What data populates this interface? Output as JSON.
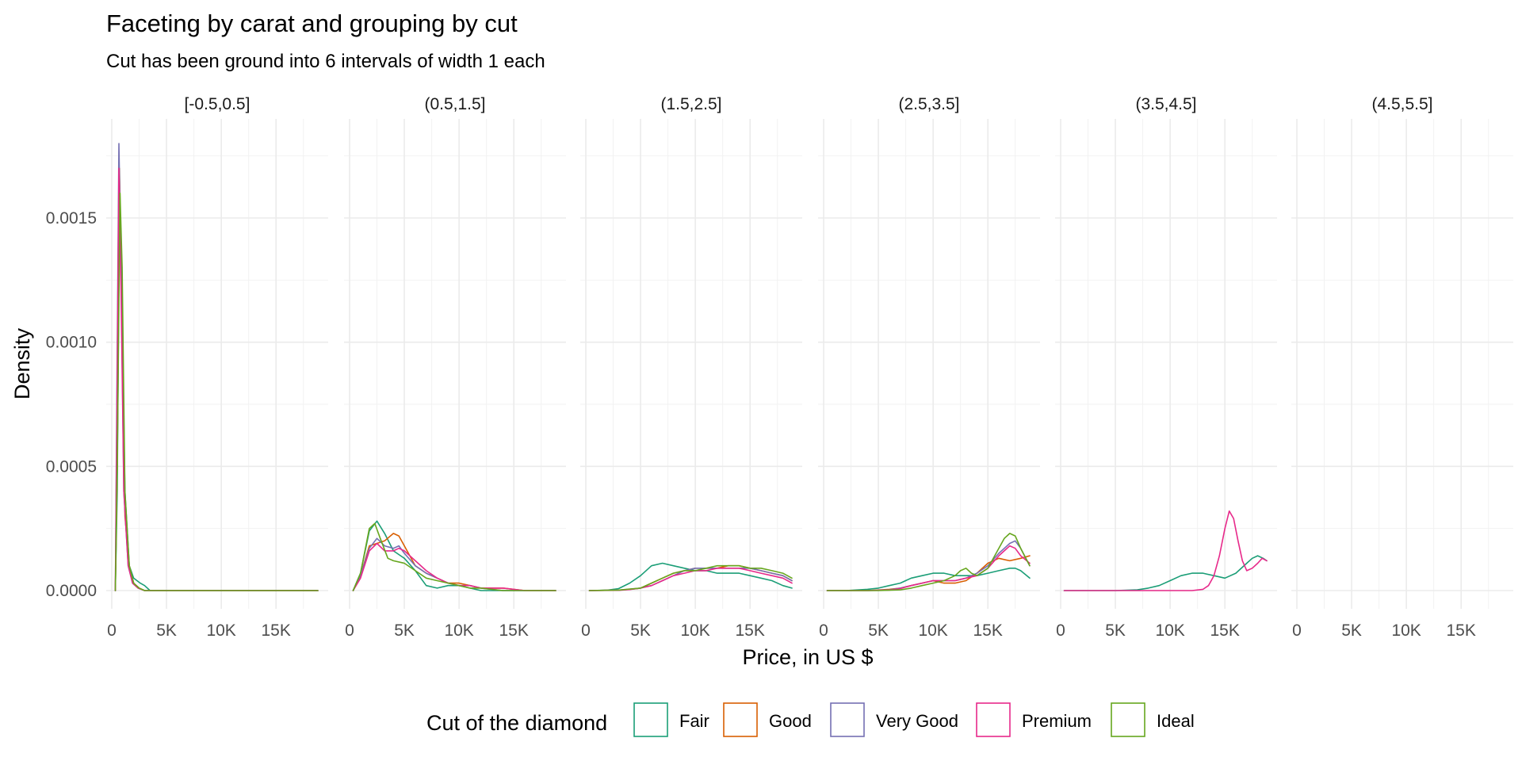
{
  "chart_data": {
    "type": "line",
    "title": "Faceting by carat and grouping by cut",
    "subtitle": "Cut has been ground into 6 intervals of width 1 each",
    "xlabel": "Price, in US $",
    "ylabel": "Density",
    "xlim": [
      0,
      18823
    ],
    "ylim": [
      0,
      0.0018
    ],
    "x_ticks": [
      0,
      5000,
      10000,
      15000
    ],
    "x_tick_labels": [
      "0",
      "5K",
      "10K",
      "15K"
    ],
    "y_ticks": [
      0.0,
      0.0005,
      0.001,
      0.0015
    ],
    "y_tick_labels": [
      "0.0000",
      "0.0005",
      "0.0010",
      "0.0015"
    ],
    "grid": true,
    "legend": {
      "title": "Cut of the diamond",
      "position": "bottom",
      "entries": [
        "Fair",
        "Good",
        "Very Good",
        "Premium",
        "Ideal"
      ]
    },
    "colors": {
      "Fair": "#1b9e77",
      "Good": "#d95f02",
      "Very Good": "#7570b3",
      "Premium": "#e7298a",
      "Ideal": "#66a61e"
    },
    "facets": [
      {
        "label": "[-0.5,0.5]",
        "series": [
          {
            "name": "Fair",
            "x": [
              326,
              500,
              700,
              900,
              1200,
              1600,
              2000,
              2600,
              3000,
              3500,
              18823
            ],
            "y": [
              0.0,
              0.0004,
              0.0016,
              0.0012,
              0.0004,
              0.0001,
              5e-05,
              3e-05,
              2e-05,
              0.0,
              0.0
            ]
          },
          {
            "name": "Good",
            "x": [
              326,
              500,
              700,
              900,
              1200,
              1600,
              2000,
              2500,
              3000,
              18823
            ],
            "y": [
              0.0,
              0.0005,
              0.0017,
              0.0012,
              0.0003,
              0.0001,
              3e-05,
              1e-05,
              0.0,
              0.0
            ]
          },
          {
            "name": "Very Good",
            "x": [
              326,
              450,
              650,
              850,
              1100,
              1500,
              1900,
              2400,
              3000,
              18823
            ],
            "y": [
              0.0,
              0.0007,
              0.0018,
              0.0013,
              0.0004,
              0.0001,
              3e-05,
              1e-05,
              0.0,
              0.0
            ]
          },
          {
            "name": "Premium",
            "x": [
              326,
              450,
              650,
              850,
              1100,
              1500,
              1900,
              2400,
              3000,
              18823
            ],
            "y": [
              0.0,
              0.0006,
              0.0017,
              0.0012,
              0.0004,
              0.0001,
              3e-05,
              1e-05,
              0.0,
              0.0
            ]
          },
          {
            "name": "Ideal",
            "x": [
              326,
              500,
              750,
              950,
              1200,
              1600,
              2000,
              2500,
              3000,
              18823
            ],
            "y": [
              0.0,
              0.0005,
              0.0016,
              0.0013,
              0.0004,
              0.0001,
              3e-05,
              1e-05,
              0.0,
              0.0
            ]
          }
        ]
      },
      {
        "label": "(0.5,1.5]",
        "series": [
          {
            "name": "Fair",
            "x": [
              326,
              1000,
              1800,
              2500,
              3200,
              4000,
              5000,
              6000,
              7000,
              8000,
              9000,
              10000,
              11000,
              12000,
              13000,
              15000,
              17000,
              18823
            ],
            "y": [
              0.0,
              7e-05,
              0.00024,
              0.00028,
              0.00023,
              0.00016,
              0.00013,
              8e-05,
              2e-05,
              1e-05,
              2e-05,
              2e-05,
              1e-05,
              0.0,
              0.0,
              0.0,
              0.0,
              0.0
            ]
          },
          {
            "name": "Good",
            "x": [
              326,
              1000,
              1800,
              2500,
              3200,
              4000,
              4500,
              5000,
              6000,
              7000,
              8000,
              9000,
              10000,
              11000,
              12000,
              14000,
              16000,
              18823
            ],
            "y": [
              0.0,
              6e-05,
              0.00018,
              0.00019,
              0.0002,
              0.00023,
              0.00022,
              0.00018,
              0.0001,
              7e-05,
              5e-05,
              3e-05,
              3e-05,
              2e-05,
              1e-05,
              1e-05,
              0.0,
              0.0
            ]
          },
          {
            "name": "Very Good",
            "x": [
              326,
              1000,
              1800,
              2500,
              3200,
              4000,
              4500,
              5000,
              6000,
              7000,
              8000,
              9000,
              10000,
              11000,
              12000,
              14000,
              16000,
              18823
            ],
            "y": [
              0.0,
              6e-05,
              0.00017,
              0.00021,
              0.00018,
              0.00017,
              0.00018,
              0.00015,
              0.0001,
              7e-05,
              5e-05,
              3e-05,
              2e-05,
              2e-05,
              1e-05,
              0.0,
              0.0,
              0.0
            ]
          },
          {
            "name": "Premium",
            "x": [
              326,
              1000,
              1800,
              2500,
              3200,
              4000,
              4500,
              5000,
              6000,
              7000,
              8000,
              9000,
              10000,
              11000,
              12000,
              14000,
              16000,
              18823
            ],
            "y": [
              0.0,
              5e-05,
              0.00016,
              0.00019,
              0.00016,
              0.00016,
              0.00017,
              0.00016,
              0.00012,
              8e-05,
              5e-05,
              3e-05,
              2e-05,
              2e-05,
              1e-05,
              1e-05,
              0.0,
              0.0
            ]
          },
          {
            "name": "Ideal",
            "x": [
              326,
              1000,
              1800,
              2300,
              2800,
              3500,
              4000,
              5000,
              6000,
              7000,
              8000,
              9000,
              10000,
              11000,
              12000,
              14000,
              16000,
              18823
            ],
            "y": [
              0.0,
              7e-05,
              0.00025,
              0.00027,
              0.00021,
              0.00013,
              0.00012,
              0.00011,
              8e-05,
              5e-05,
              4e-05,
              3e-05,
              2e-05,
              1e-05,
              1e-05,
              0.0,
              0.0,
              0.0
            ]
          }
        ]
      },
      {
        "label": "(1.5,2.5]",
        "series": [
          {
            "name": "Fair",
            "x": [
              326,
              2000,
              3000,
              4000,
              5000,
              6000,
              7000,
              8000,
              9000,
              10000,
              11000,
              12000,
              13000,
              14000,
              15000,
              16000,
              17000,
              18000,
              18823
            ],
            "y": [
              0.0,
              2e-06,
              8e-06,
              3e-05,
              6e-05,
              0.0001,
              0.00011,
              0.0001,
              9e-05,
              8e-05,
              8e-05,
              7e-05,
              7e-05,
              7e-05,
              6e-05,
              5e-05,
              4e-05,
              2e-05,
              1e-05
            ]
          },
          {
            "name": "Good",
            "x": [
              326,
              3000,
              4000,
              5000,
              6000,
              7000,
              8000,
              9000,
              10000,
              11000,
              12000,
              13000,
              14000,
              15000,
              16000,
              17000,
              18000,
              18823
            ],
            "y": [
              0.0,
              2e-06,
              5e-06,
              1e-05,
              3e-05,
              5e-05,
              7e-05,
              8e-05,
              9e-05,
              9e-05,
              9e-05,
              0.0001,
              0.0001,
              9e-05,
              8e-05,
              7e-05,
              6e-05,
              4e-05
            ]
          },
          {
            "name": "Very Good",
            "x": [
              326,
              3000,
              4000,
              5000,
              6000,
              7000,
              8000,
              9000,
              10000,
              11000,
              12000,
              13000,
              14000,
              15000,
              16000,
              17000,
              18000,
              18823
            ],
            "y": [
              0.0,
              2e-06,
              5e-06,
              1e-05,
              2e-05,
              4e-05,
              6e-05,
              8e-05,
              9e-05,
              9e-05,
              9e-05,
              9e-05,
              9e-05,
              9e-05,
              8e-05,
              7e-05,
              6e-05,
              4e-05
            ]
          },
          {
            "name": "Premium",
            "x": [
              326,
              3000,
              4000,
              5000,
              6000,
              7000,
              8000,
              9000,
              10000,
              11000,
              12000,
              13000,
              14000,
              15000,
              16000,
              17000,
              18000,
              18823
            ],
            "y": [
              0.0,
              1e-06,
              4e-06,
              1e-05,
              2e-05,
              4e-05,
              6e-05,
              7e-05,
              8e-05,
              8e-05,
              9e-05,
              9e-05,
              9e-05,
              8e-05,
              7e-05,
              6e-05,
              5e-05,
              3e-05
            ]
          },
          {
            "name": "Ideal",
            "x": [
              326,
              3000,
              4000,
              5000,
              6000,
              7000,
              8000,
              9000,
              10000,
              11000,
              12000,
              13000,
              14000,
              15000,
              16000,
              17000,
              18000,
              18823
            ],
            "y": [
              0.0,
              2e-06,
              6e-06,
              1e-05,
              3e-05,
              5e-05,
              7e-05,
              8e-05,
              8e-05,
              9e-05,
              0.0001,
              0.0001,
              0.0001,
              9e-05,
              9e-05,
              8e-05,
              7e-05,
              5e-05
            ]
          }
        ]
      },
      {
        "label": "(2.5,3.5]",
        "series": [
          {
            "name": "Fair",
            "x": [
              326,
              2000,
              4000,
              5000,
              6000,
              7000,
              8000,
              9000,
              10000,
              11000,
              12000,
              13000,
              14000,
              15000,
              16000,
              17000,
              17500,
              18000,
              18823
            ],
            "y": [
              0.0,
              0.0,
              5e-06,
              1e-05,
              2e-05,
              3e-05,
              5e-05,
              6e-05,
              7e-05,
              7e-05,
              6e-05,
              6e-05,
              6e-05,
              7e-05,
              8e-05,
              9e-05,
              9e-05,
              8e-05,
              5e-05
            ]
          },
          {
            "name": "Good",
            "x": [
              326,
              4000,
              6000,
              7000,
              8000,
              9000,
              10000,
              11000,
              12000,
              13000,
              14000,
              15000,
              16000,
              17000,
              18000,
              18823
            ],
            "y": [
              0.0,
              0.0,
              5e-06,
              1e-05,
              2e-05,
              3e-05,
              4e-05,
              3e-05,
              3e-05,
              4e-05,
              7e-05,
              0.00011,
              0.00013,
              0.00012,
              0.00013,
              0.00014
            ]
          },
          {
            "name": "Very Good",
            "x": [
              326,
              4000,
              6000,
              7000,
              8000,
              9000,
              10000,
              11000,
              12000,
              13000,
              14000,
              15000,
              16000,
              17000,
              17500,
              18000,
              18823
            ],
            "y": [
              0.0,
              0.0,
              3e-06,
              1e-05,
              2e-05,
              3e-05,
              4e-05,
              4e-05,
              4e-05,
              5e-05,
              7e-05,
              0.0001,
              0.00015,
              0.00019,
              0.0002,
              0.00017,
              0.0001
            ]
          },
          {
            "name": "Premium",
            "x": [
              326,
              4000,
              6000,
              7000,
              8000,
              9000,
              10000,
              11000,
              12000,
              13000,
              14000,
              15000,
              16000,
              17000,
              17500,
              18000,
              18823
            ],
            "y": [
              0.0,
              0.0,
              2e-06,
              8e-06,
              2e-05,
              3e-05,
              4e-05,
              4e-05,
              4e-05,
              5e-05,
              6e-05,
              9e-05,
              0.00014,
              0.00018,
              0.00017,
              0.00014,
              0.00011
            ]
          },
          {
            "name": "Ideal",
            "x": [
              326,
              5000,
              7000,
              8000,
              9000,
              10000,
              11000,
              12000,
              12500,
              13000,
              13500,
              14000,
              15000,
              16000,
              16500,
              17000,
              17500,
              18000,
              18823
            ],
            "y": [
              0.0,
              0.0,
              3e-06,
              1e-05,
              2e-05,
              3e-05,
              4e-05,
              6e-05,
              8e-05,
              9e-05,
              7e-05,
              6e-05,
              9e-05,
              0.00017,
              0.00021,
              0.00023,
              0.00022,
              0.00017,
              0.0001
            ]
          }
        ]
      },
      {
        "label": "(3.5,4.5]",
        "series": [
          {
            "name": "Fair",
            "x": [
              326,
              5000,
              7000,
              8000,
              9000,
              10000,
              11000,
              12000,
              13000,
              14000,
              15000,
              16000,
              17000,
              17500,
              18000,
              18500,
              18823
            ],
            "y": [
              0.0,
              0.0,
              3e-06,
              1e-05,
              2e-05,
              4e-05,
              6e-05,
              7e-05,
              7e-05,
              6e-05,
              5e-05,
              7e-05,
              0.00011,
              0.00013,
              0.00014,
              0.00013,
              0.00012
            ]
          },
          {
            "name": "Premium",
            "x": [
              326,
              12000,
              13000,
              13500,
              14000,
              14500,
              15000,
              15400,
              15800,
              16200,
              16600,
              17000,
              17500,
              18000,
              18400,
              18823
            ],
            "y": [
              0.0,
              0.0,
              5e-06,
              2e-05,
              6e-05,
              0.00014,
              0.00025,
              0.00032,
              0.00029,
              0.0002,
              0.00012,
              8e-05,
              9e-05,
              0.00011,
              0.00013,
              0.00012
            ]
          }
        ]
      },
      {
        "label": "(4.5,5.5]",
        "series": []
      }
    ]
  }
}
